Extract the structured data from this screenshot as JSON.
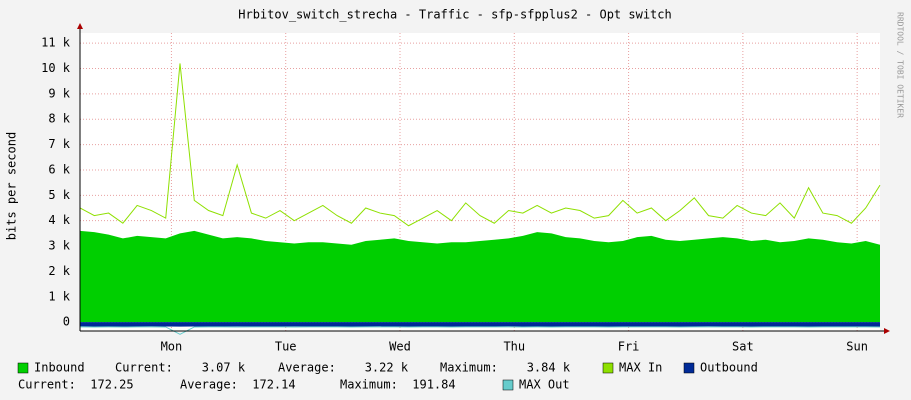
{
  "chart_data": {
    "type": "area",
    "title": "Hrbitov_switch_strecha - Traffic - sfp-sfpplus2 - Opt switch",
    "ylabel": "bits per second",
    "watermark": "RRDTOOL / TOBI OETIKER",
    "x": [
      0,
      0.125,
      0.25,
      0.375,
      0.5,
      0.625,
      0.75,
      0.875,
      1,
      1.125,
      1.25,
      1.375,
      1.5,
      1.625,
      1.75,
      1.875,
      2,
      2.125,
      2.25,
      2.375,
      2.5,
      2.625,
      2.75,
      2.875,
      3,
      3.125,
      3.25,
      3.375,
      3.5,
      3.625,
      3.75,
      3.875,
      4,
      4.125,
      4.25,
      4.375,
      4.5,
      4.625,
      4.75,
      4.875,
      5,
      5.125,
      5.25,
      5.375,
      5.5,
      5.625,
      5.75,
      5.875,
      6,
      6.125,
      6.25,
      6.375,
      6.5,
      6.625,
      6.75,
      6.875,
      7
    ],
    "xlim": [
      0,
      7
    ],
    "xticks": [
      {
        "value": 0.8,
        "label": "Mon"
      },
      {
        "value": 1.8,
        "label": "Tue"
      },
      {
        "value": 2.8,
        "label": "Wed"
      },
      {
        "value": 3.8,
        "label": "Thu"
      },
      {
        "value": 4.8,
        "label": "Fri"
      },
      {
        "value": 5.8,
        "label": "Sat"
      },
      {
        "value": 6.8,
        "label": "Sun"
      }
    ],
    "ylim": [
      -350,
      11400
    ],
    "yticks": [
      0,
      {
        "value": 1000,
        "label": "1 k"
      },
      {
        "value": 2000,
        "label": "2 k"
      },
      {
        "value": 3000,
        "label": "3 k"
      },
      {
        "value": 4000,
        "label": "4 k"
      },
      {
        "value": 5000,
        "label": "5 k"
      },
      {
        "value": 6000,
        "label": "6 k"
      },
      {
        "value": 7000,
        "label": "7 k"
      },
      {
        "value": 8000,
        "label": "8 k"
      },
      {
        "value": 9000,
        "label": "9 k"
      },
      {
        "value": 10000,
        "label": "10 k"
      },
      {
        "value": 11000,
        "label": "11 k"
      }
    ],
    "grid": true,
    "series": [
      {
        "name": "Inbound",
        "color": "#00cf00",
        "style": "area",
        "direction": "up",
        "stats": [
          "Current:    3.07 k",
          "Average:    3.22 k",
          "Maximum:    3.84 k"
        ],
        "values": [
          3600,
          3550,
          3450,
          3300,
          3400,
          3350,
          3300,
          3500,
          3600,
          3450,
          3300,
          3350,
          3300,
          3200,
          3150,
          3100,
          3150,
          3150,
          3100,
          3050,
          3200,
          3250,
          3300,
          3200,
          3150,
          3100,
          3150,
          3150,
          3200,
          3250,
          3300,
          3400,
          3550,
          3500,
          3350,
          3300,
          3200,
          3150,
          3200,
          3350,
          3400,
          3250,
          3200,
          3250,
          3300,
          3350,
          3300,
          3200,
          3250,
          3150,
          3200,
          3300,
          3250,
          3150,
          3100,
          3200,
          3050
        ]
      },
      {
        "name": "MAX In",
        "color": "#8ee000",
        "style": "line",
        "direction": "up",
        "values": [
          4500,
          4200,
          4300,
          3900,
          4600,
          4400,
          4100,
          10200,
          4800,
          4400,
          4200,
          6200,
          4300,
          4100,
          4400,
          4000,
          4300,
          4600,
          4200,
          3900,
          4500,
          4300,
          4200,
          3800,
          4100,
          4400,
          4000,
          4700,
          4200,
          3900,
          4400,
          4300,
          4600,
          4300,
          4500,
          4400,
          4100,
          4200,
          4800,
          4300,
          4500,
          4000,
          4400,
          4900,
          4200,
          4100,
          4600,
          4300,
          4200,
          4700,
          4100,
          5300,
          4300,
          4200,
          3900,
          4500,
          5400
        ]
      },
      {
        "name": "Outbound",
        "color": "#002a97",
        "style": "area",
        "direction": "down",
        "stats": [
          "Current:  172.25",
          "Average:  172.14",
          "Maximum:  191.84"
        ],
        "values": [
          170,
          172,
          175,
          171,
          173,
          170,
          172,
          176,
          174,
          172,
          171,
          170,
          173,
          172,
          171,
          170,
          172,
          174,
          173,
          172,
          171,
          170,
          172,
          173,
          172,
          171,
          172,
          173,
          172,
          171,
          170,
          172,
          174,
          173,
          172,
          171,
          172,
          173,
          172,
          171,
          172,
          173,
          172,
          171,
          170,
          172,
          173,
          172,
          171,
          172,
          173,
          172,
          171,
          172,
          173,
          172,
          172
        ]
      },
      {
        "name": "MAX Out",
        "color": "#66cccc",
        "style": "line",
        "direction": "down",
        "values": [
          185,
          190,
          188,
          192,
          186,
          189,
          190,
          480,
          191,
          188,
          187,
          190,
          189,
          186,
          188,
          190,
          187,
          189,
          188,
          190,
          186,
          188,
          189,
          191,
          187,
          188,
          190,
          186,
          189,
          188,
          187,
          190,
          189,
          191,
          188,
          187,
          189,
          190,
          188,
          186,
          189,
          188,
          190,
          187,
          189,
          188,
          187,
          190,
          188,
          189,
          187,
          190,
          188,
          189,
          187,
          188,
          190
        ]
      }
    ]
  }
}
